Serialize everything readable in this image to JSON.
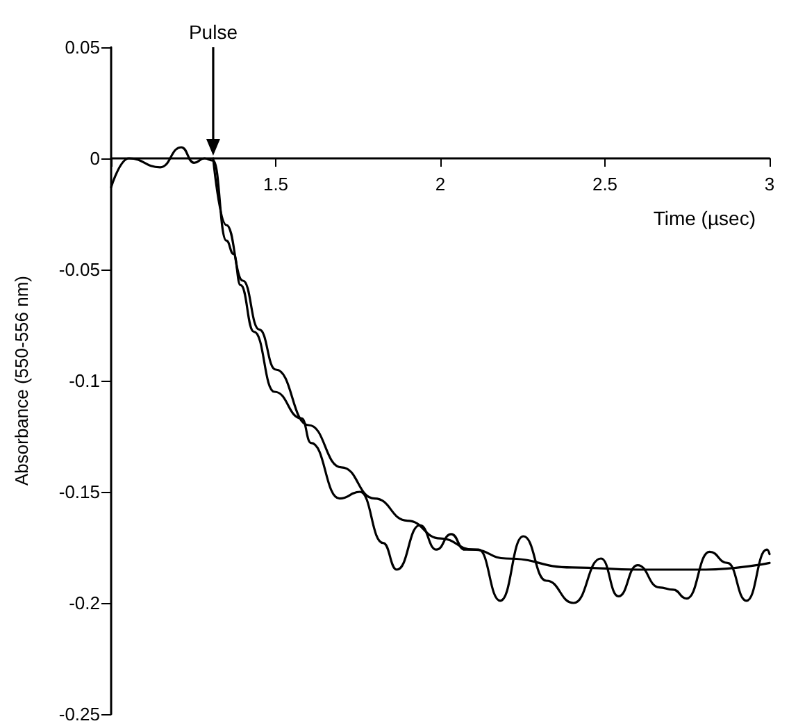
{
  "chart_data": {
    "type": "line",
    "xlabel": "Time (µsec)",
    "ylabel": "Absorbance (550-556 nm)",
    "annotations": [
      "Pulse"
    ],
    "series": [
      {
        "color": "#000000",
        "x": [
          1.0,
          1.054,
          1.149,
          1.213,
          1.252,
          1.283,
          1.31,
          1.35,
          1.372,
          1.393,
          1.434,
          1.496,
          1.579,
          1.607,
          1.694,
          1.756,
          1.826,
          1.868,
          1.938,
          1.988,
          2.033,
          2.074,
          2.116,
          2.182,
          2.252,
          2.322,
          2.405,
          2.488,
          2.541,
          2.599,
          2.665,
          2.707,
          2.748,
          2.818,
          2.872,
          2.93,
          2.992,
          3.0
        ],
        "values": [
          -0.013,
          0.0,
          -0.004,
          0.005,
          -0.002,
          0.0,
          -0.001,
          -0.037,
          -0.043,
          -0.057,
          -0.078,
          -0.105,
          -0.117,
          -0.128,
          -0.153,
          -0.15,
          -0.173,
          -0.185,
          -0.165,
          -0.176,
          -0.169,
          -0.176,
          -0.176,
          -0.199,
          -0.17,
          -0.19,
          -0.2,
          -0.18,
          -0.197,
          -0.183,
          -0.193,
          -0.194,
          -0.198,
          -0.177,
          -0.182,
          -0.199,
          -0.176,
          -0.178
        ]
      },
      {
        "color": "#000000",
        "x": [
          1.31,
          1.35,
          1.4,
          1.45,
          1.5,
          1.6,
          1.7,
          1.8,
          1.9,
          2.0,
          2.1,
          2.2,
          2.4,
          2.6,
          2.8,
          3.0
        ],
        "values": [
          0.0,
          -0.03,
          -0.055,
          -0.077,
          -0.095,
          -0.12,
          -0.139,
          -0.153,
          -0.163,
          -0.171,
          -0.176,
          -0.18,
          -0.184,
          -0.185,
          -0.185,
          -0.182
        ]
      }
    ],
    "xlim": [
      1,
      3
    ],
    "xticks": [
      {
        "value": 1,
        "label": null
      },
      1.5,
      2,
      2.5,
      3
    ],
    "ylim": [
      -0.25,
      0.05
    ],
    "yticks": [
      -0.25,
      -0.2,
      -0.15,
      -0.1,
      -0.05,
      0,
      0.05
    ],
    "grid": false,
    "marker": "none",
    "line_style": "solid"
  }
}
